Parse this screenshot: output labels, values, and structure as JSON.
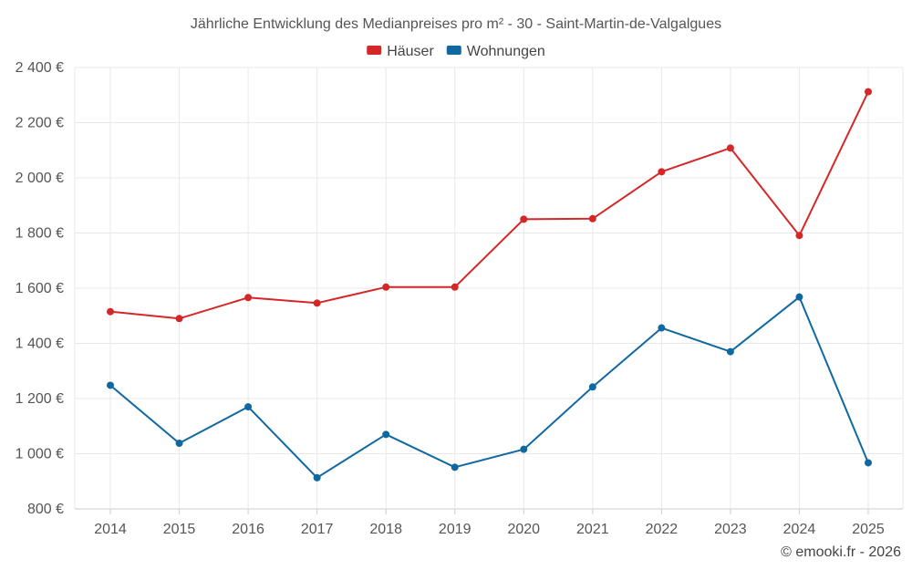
{
  "chart_data": {
    "type": "line",
    "title": "Jährliche Entwicklung des Medianpreises pro m² - 30 - Saint-Martin-de-Valgalgues",
    "categories": [
      "2014",
      "2015",
      "2016",
      "2017",
      "2018",
      "2019",
      "2020",
      "2021",
      "2022",
      "2023",
      "2024",
      "2025"
    ],
    "series": [
      {
        "name": "Häuser",
        "color": "#d62728",
        "values": [
          1515,
          1490,
          1566,
          1546,
          1604,
          1604,
          1850,
          1852,
          2022,
          2108,
          1791,
          2312
        ]
      },
      {
        "name": "Wohnungen",
        "color": "#1068a0",
        "values": [
          1248,
          1038,
          1170,
          913,
          1070,
          951,
          1016,
          1242,
          1456,
          1370,
          1568,
          967
        ]
      }
    ],
    "yticks": [
      "800 €",
      "1 000 €",
      "1 200 €",
      "1 400 €",
      "1 600 €",
      "1 800 €",
      "2 000 €",
      "2 200 €",
      "2 400 €"
    ],
    "ytick_values": [
      800,
      1000,
      1200,
      1400,
      1600,
      1800,
      2000,
      2200,
      2400
    ],
    "ylim": [
      800,
      2400
    ],
    "xlabel": "",
    "ylabel": "",
    "legend_position": "top-center",
    "grid": true
  },
  "credit": "© emooki.fr - 2026"
}
